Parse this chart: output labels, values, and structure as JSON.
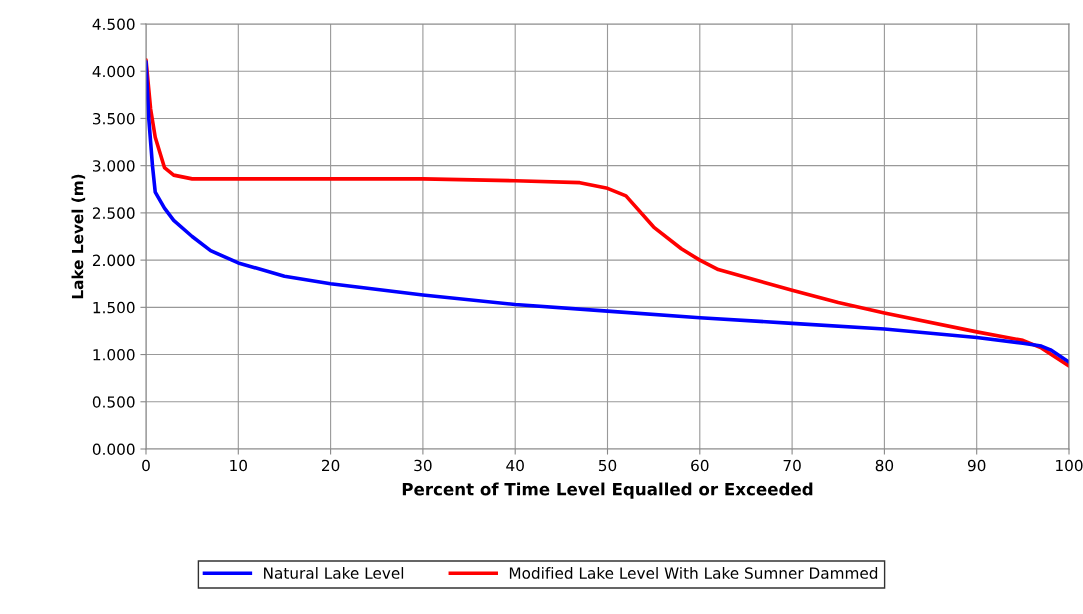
{
  "chart_data": {
    "type": "line",
    "xlabel": "Percent of Time Level Equalled or Exceeded",
    "ylabel": "Lake Level (m)",
    "xlim": [
      0,
      100
    ],
    "xticks": [
      0,
      10,
      20,
      30,
      40,
      50,
      60,
      70,
      80,
      90,
      100
    ],
    "ylim": [
      0,
      4.5
    ],
    "yticks": [
      {
        "value": 0,
        "label": "0.000"
      },
      {
        "value": 0.5,
        "label": "0.500"
      },
      {
        "value": 1,
        "label": "1.000"
      },
      {
        "value": 1.5,
        "label": "1.500"
      },
      {
        "value": 2,
        "label": "2.000"
      },
      {
        "value": 2.5,
        "label": "2.500"
      },
      {
        "value": 3,
        "label": "3.000"
      },
      {
        "value": 3.5,
        "label": "3.500"
      },
      {
        "value": 4,
        "label": "4.000"
      },
      {
        "value": 4.5,
        "label": "4.500"
      }
    ],
    "grid": true,
    "legend": "bottom",
    "marker": "none",
    "line_style": "solid",
    "series": [
      {
        "name": "Natural Lake Level",
        "color": "#0000ff",
        "x": [
          0,
          0.3,
          0.7,
          1,
          2,
          3,
          5,
          7,
          10,
          15,
          20,
          30,
          40,
          50,
          60,
          70,
          80,
          90,
          95,
          97,
          98,
          100
        ],
        "values": [
          4.1,
          3.5,
          3.0,
          2.72,
          2.55,
          2.42,
          2.25,
          2.1,
          1.97,
          1.83,
          1.75,
          1.63,
          1.53,
          1.46,
          1.39,
          1.33,
          1.27,
          1.18,
          1.12,
          1.09,
          1.05,
          0.92
        ]
      },
      {
        "name": "Modified Lake Level With Lake Sumner Dammed",
        "color": "#ff0000",
        "x": [
          0,
          0.5,
          1,
          2,
          3,
          5,
          10,
          30,
          40,
          47,
          50,
          52,
          55,
          58,
          60,
          62,
          70,
          75,
          80,
          90,
          95,
          97,
          100
        ],
        "values": [
          4.12,
          3.6,
          3.3,
          2.98,
          2.9,
          2.86,
          2.86,
          2.86,
          2.84,
          2.82,
          2.76,
          2.68,
          2.35,
          2.12,
          2.0,
          1.9,
          1.68,
          1.55,
          1.44,
          1.24,
          1.15,
          1.07,
          0.88
        ]
      }
    ]
  }
}
